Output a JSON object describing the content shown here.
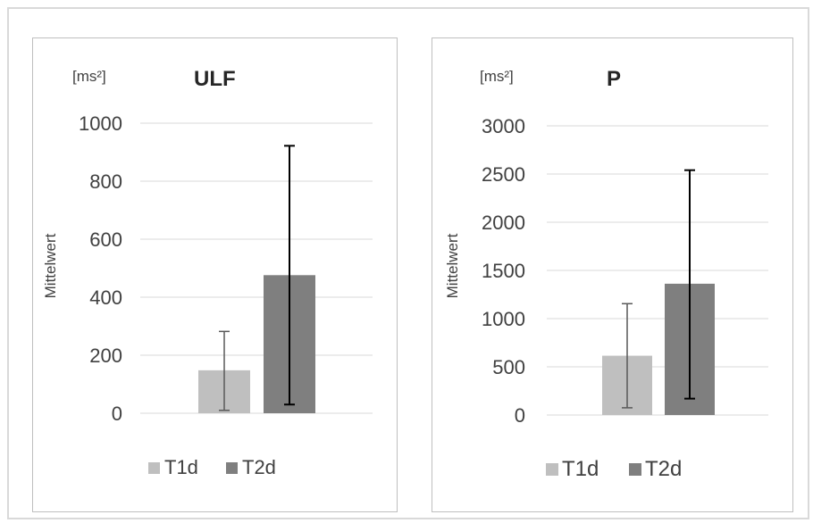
{
  "chart_data": [
    {
      "type": "bar",
      "title": "ULF",
      "unit_label": "[ms²]",
      "ylabel": "Mittelwert",
      "xlabel": "",
      "ylim": [
        0,
        1000
      ],
      "yticks": [
        0,
        200,
        400,
        600,
        800,
        1000
      ],
      "grid": true,
      "legend_position": "bottom",
      "categories": [
        ""
      ],
      "series": [
        {
          "name": "T1d",
          "values": [
            148
          ],
          "error_low": [
            10
          ],
          "error_high": [
            282
          ],
          "color": "#bfbfbf"
        },
        {
          "name": "T2d",
          "values": [
            476
          ],
          "error_low": [
            30
          ],
          "error_high": [
            922
          ],
          "color": "#7f7f7f"
        }
      ]
    },
    {
      "type": "bar",
      "title": "P",
      "unit_label": "[ms²]",
      "ylabel": "Mittelwert",
      "xlabel": "",
      "ylim": [
        0,
        3000
      ],
      "yticks": [
        0,
        500,
        1000,
        1500,
        2000,
        2500,
        3000
      ],
      "grid": true,
      "legend_position": "bottom",
      "categories": [
        ""
      ],
      "series": [
        {
          "name": "T1d",
          "values": [
            615
          ],
          "error_low": [
            75
          ],
          "error_high": [
            1155
          ],
          "color": "#bfbfbf"
        },
        {
          "name": "T2d",
          "values": [
            1362
          ],
          "error_low": [
            170
          ],
          "error_high": [
            2540
          ],
          "color": "#7f7f7f"
        }
      ]
    }
  ]
}
